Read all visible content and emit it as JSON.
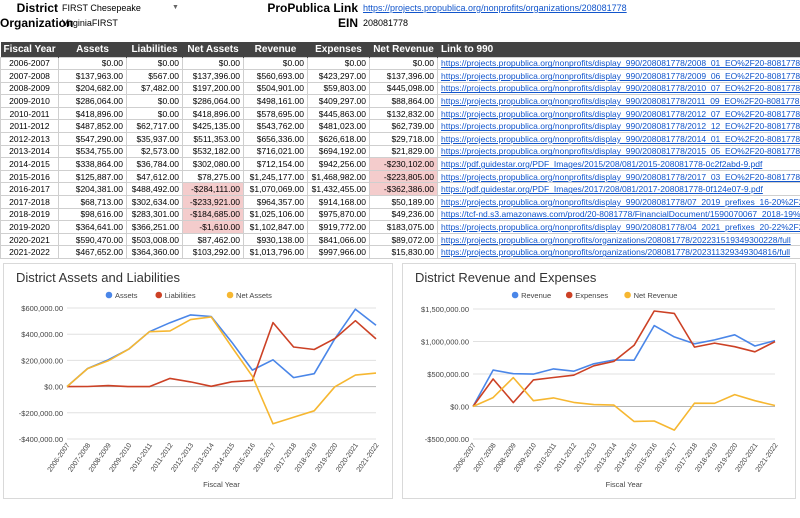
{
  "header": {
    "district_label": "District",
    "district_value": "FIRST Chesepeake",
    "organization_label": "Organization",
    "organization_value": "VirginiaFIRST",
    "propublica_label": "ProPublica Link",
    "propublica_url": "https://projects.propublica.org/nonprofits/organizations/208081778",
    "ein_label": "EIN",
    "ein_value": "208081778"
  },
  "table": {
    "columns": [
      "Fiscal Year",
      "Assets",
      "Liabilities",
      "Net Assets",
      "Revenue",
      "Expenses",
      "Net Revenue",
      "Link to 990"
    ],
    "rows": [
      {
        "year": "2006-2007",
        "assets": "$0.00",
        "liabilities": "$0.00",
        "net_assets": "$0.00",
        "revenue": "$0.00",
        "expenses": "$0.00",
        "net_revenue": "$0.00",
        "link": "https://projects.propublica.org/nonprofits/display_990/208081778/2008_01_EO%2F20-8081778_990EZ_200706"
      },
      {
        "year": "2007-2008",
        "assets": "$137,963.00",
        "liabilities": "$567.00",
        "net_assets": "$137,396.00",
        "revenue": "$560,693.00",
        "expenses": "$423,297.00",
        "net_revenue": "$137,396.00",
        "link": "https://projects.propublica.org/nonprofits/display_990/208081778/2009_06_EO%2F20-8081778_990_200806"
      },
      {
        "year": "2008-2009",
        "assets": "$204,682.00",
        "liabilities": "$7,482.00",
        "net_assets": "$197,200.00",
        "revenue": "$504,901.00",
        "expenses": "$59,803.00",
        "net_revenue": "$445,098.00",
        "link": "https://projects.propublica.org/nonprofits/display_990/208081778/2010_07_EO%2F20-8081778_990_200906"
      },
      {
        "year": "2009-2010",
        "assets": "$286,064.00",
        "liabilities": "$0.00",
        "net_assets": "$286,064.00",
        "revenue": "$498,161.00",
        "expenses": "$409,297.00",
        "net_revenue": "$88,864.00",
        "link": "https://projects.propublica.org/nonprofits/display_990/208081778/2011_09_EO%2F20-8081778_990_201006"
      },
      {
        "year": "2010-2011",
        "assets": "$418,896.00",
        "liabilities": "$0.00",
        "net_assets": "$418,896.00",
        "revenue": "$578,695.00",
        "expenses": "$445,863.00",
        "net_revenue": "$132,832.00",
        "link": "https://projects.propublica.org/nonprofits/display_990/208081778/2012_07_EO%2F20-8081778_990_201106"
      },
      {
        "year": "2011-2012",
        "assets": "$487,852.00",
        "liabilities": "$62,717.00",
        "net_assets": "$425,135.00",
        "revenue": "$543,762.00",
        "expenses": "$481,023.00",
        "net_revenue": "$62,739.00",
        "link": "https://projects.propublica.org/nonprofits/display_990/208081778/2012_12_EO%2F20-8081778_990_201206"
      },
      {
        "year": "2012-2013",
        "assets": "$547,290.00",
        "liabilities": "$35,937.00",
        "net_assets": "$511,353.00",
        "revenue": "$656,336.00",
        "expenses": "$626,618.00",
        "net_revenue": "$29,718.00",
        "link": "https://projects.propublica.org/nonprofits/display_990/208081778/2014_01_EO%2F20-8081778_990_201306"
      },
      {
        "year": "2013-2014",
        "assets": "$534,755.00",
        "liabilities": "$2,573.00",
        "net_assets": "$532,182.00",
        "revenue": "$716,021.00",
        "expenses": "$694,192.00",
        "net_revenue": "$21,829.00",
        "link": "https://projects.propublica.org/nonprofits/display_990/208081778/2015_05_EO%2F20-8081778_990_201406"
      },
      {
        "year": "2014-2015",
        "assets": "$338,864.00",
        "liabilities": "$36,784.00",
        "net_assets": "$302,080.00",
        "revenue": "$712,154.00",
        "expenses": "$942,256.00",
        "net_revenue": "-$230,102.00",
        "link": "https://pdf.guidestar.org/PDF_Images/2015/208/081/2015-208081778-0c2f2abd-9.pdf"
      },
      {
        "year": "2015-2016",
        "assets": "$125,887.00",
        "liabilities": "$47,612.00",
        "net_assets": "$78,275.00",
        "revenue": "$1,245,177.00",
        "expenses": "$1,468,982.00",
        "net_revenue": "-$223,805.00",
        "link": "https://projects.propublica.org/nonprofits/display_990/208081778/2017_03_EO%2F20-8081778_990_201606"
      },
      {
        "year": "2016-2017",
        "assets": "$204,381.00",
        "liabilities": "$488,492.00",
        "net_assets": "-$284,111.00",
        "revenue": "$1,070,069.00",
        "expenses": "$1,432,455.00",
        "net_revenue": "-$362,386.00",
        "link": "https://pdf.guidestar.org/PDF_Images/2017/208/081/2017-208081778-0f124e07-9.pdf"
      },
      {
        "year": "2017-2018",
        "assets": "$68,713.00",
        "liabilities": "$302,634.00",
        "net_assets": "-$233,921.00",
        "revenue": "$964,357.00",
        "expenses": "$914,168.00",
        "net_revenue": "$50,189.00",
        "link": "https://projects.propublica.org/nonprofits/display_990/208081778/07_2019_prefixes_16-20%2F208081778_2018"
      },
      {
        "year": "2018-2019",
        "assets": "$98,616.00",
        "liabilities": "$283,301.00",
        "net_assets": "-$184,685.00",
        "revenue": "$1,025,106.00",
        "expenses": "$975,870.00",
        "net_revenue": "$49,236.00",
        "link": "https://tcf-nd.s3.amazonaws.com/prod/20-8081778/FinancialDocument/1590070067_2018-19%20VirginiaFIRST"
      },
      {
        "year": "2019-2020",
        "assets": "$364,641.00",
        "liabilities": "$366,251.00",
        "net_assets": "-$1,610.00",
        "revenue": "$1,102,847.00",
        "expenses": "$919,772.00",
        "net_revenue": "$183,075.00",
        "link": "https://projects.propublica.org/nonprofits/display_990/208081778/04_2021_prefixes_20-22%2F208081778_2020"
      },
      {
        "year": "2020-2021",
        "assets": "$590,470.00",
        "liabilities": "$503,008.00",
        "net_assets": "$87,462.00",
        "revenue": "$930,138.00",
        "expenses": "$841,066.00",
        "net_revenue": "$89,072.00",
        "link": "https://projects.propublica.org/nonprofits/organizations/208081778/202231519349300228/full"
      },
      {
        "year": "2021-2022",
        "assets": "$467,652.00",
        "liabilities": "$364,360.00",
        "net_assets": "$103,292.00",
        "revenue": "$1,013,796.00",
        "expenses": "$997,966.00",
        "net_revenue": "$15,830.00",
        "link": "https://projects.propublica.org/nonprofits/organizations/208081778/202311329349304816/full"
      }
    ]
  },
  "charts": {
    "colors": {
      "blue": "#4a86e8",
      "red": "#cc4125",
      "yellow": "#f6b731",
      "grid": "#e0e0e0",
      "zero": "#b7b7b7"
    }
  },
  "chart_data": [
    {
      "type": "line",
      "title": "District Assets and Liabilities",
      "xlabel": "Fiscal Year",
      "ylabel": "",
      "ylim": [
        -400000,
        600000
      ],
      "yticks": [
        600000,
        400000,
        200000,
        0,
        -200000,
        -400000
      ],
      "ytick_labels": [
        "$600,000.00",
        "$400,000.00",
        "$200,000.00",
        "$0.00",
        "-$200,000.00",
        "-$400,000.00"
      ],
      "legend_position": "top",
      "grid": true,
      "categories": [
        "2006-2007",
        "2007-2008",
        "2008-2009",
        "2009-2010",
        "2010-2011",
        "2011-2012",
        "2012-2013",
        "2013-2014",
        "2014-2015",
        "2015-2016",
        "2016-2017",
        "2017-2018",
        "2018-2019",
        "2019-2020",
        "2020-2021",
        "2021-2022"
      ],
      "series": [
        {
          "name": "Assets",
          "color": "#4a86e8",
          "values": [
            0,
            137963,
            204682,
            286064,
            418896,
            487852,
            547290,
            534755,
            338864,
            125887,
            204381,
            68713,
            98616,
            364641,
            590470,
            467652
          ]
        },
        {
          "name": "Liabilities",
          "color": "#cc4125",
          "values": [
            0,
            567,
            7482,
            0,
            0,
            62717,
            35937,
            2573,
            36784,
            47612,
            488492,
            302634,
            283301,
            366251,
            503008,
            364360
          ]
        },
        {
          "name": "Net Assets",
          "color": "#f6b731",
          "values": [
            0,
            137396,
            197200,
            286064,
            418896,
            425135,
            511353,
            532182,
            302080,
            78275,
            -284111,
            -233921,
            -184685,
            -1610,
            87462,
            103292
          ]
        }
      ]
    },
    {
      "type": "line",
      "title": "District Revenue and Expenses",
      "xlabel": "Fiscal Year",
      "ylabel": "",
      "ylim": [
        -500000,
        1500000
      ],
      "yticks": [
        1500000,
        1000000,
        500000,
        0,
        -500000
      ],
      "ytick_labels": [
        "$1,500,000.00",
        "$1,000,000.00",
        "$500,000.00",
        "$0.00",
        "-$500,000.00"
      ],
      "legend_position": "top",
      "grid": true,
      "categories": [
        "2006-2007",
        "2007-2008",
        "2008-2009",
        "2009-2010",
        "2010-2011",
        "2011-2012",
        "2012-2013",
        "2013-2014",
        "2014-2015",
        "2015-2016",
        "2016-2017",
        "2017-2018",
        "2018-2019",
        "2019-2020",
        "2020-2021",
        "2021-2022"
      ],
      "series": [
        {
          "name": "Revenue",
          "color": "#4a86e8",
          "values": [
            0,
            560693,
            504901,
            498161,
            578695,
            543762,
            656336,
            716021,
            712154,
            1245177,
            1070069,
            964357,
            1025106,
            1102847,
            930138,
            1013796
          ]
        },
        {
          "name": "Expenses",
          "color": "#cc4125",
          "values": [
            0,
            423297,
            59803,
            409297,
            445863,
            481023,
            626618,
            694192,
            942256,
            1468982,
            1432455,
            914168,
            975870,
            919772,
            841066,
            997966
          ]
        },
        {
          "name": "Net Revenue",
          "color": "#f6b731",
          "values": [
            0,
            137396,
            445098,
            88864,
            132832,
            62739,
            29718,
            21829,
            -230102,
            -223805,
            -362386,
            50189,
            49236,
            183075,
            89072,
            15830
          ]
        }
      ]
    }
  ]
}
